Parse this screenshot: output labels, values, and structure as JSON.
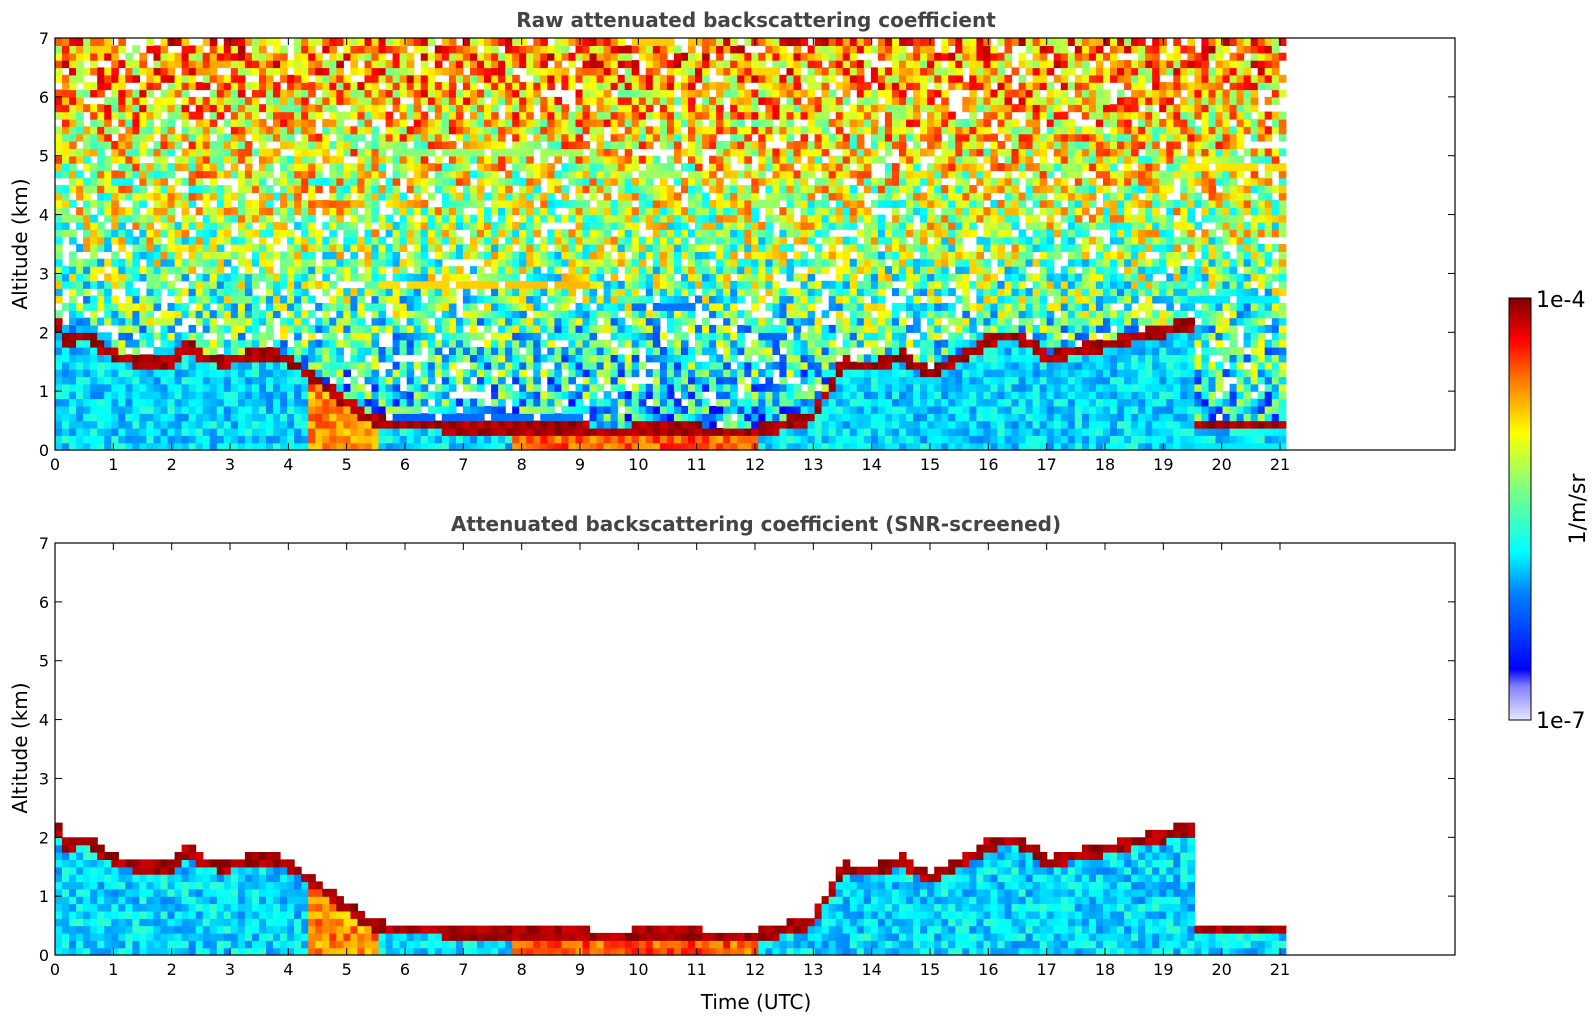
{
  "chart_data": [
    {
      "type": "heatmap",
      "title": "Raw attenuated backscattering coefficient",
      "xlabel": "",
      "ylabel": "Altitude (km)",
      "xlim": [
        0,
        24
      ],
      "ylim": [
        0,
        7
      ],
      "xticks": [
        "0",
        "1",
        "2",
        "3",
        "4",
        "5",
        "6",
        "7",
        "8",
        "9",
        "10",
        "11",
        "12",
        "13",
        "14",
        "15",
        "16",
        "17",
        "18",
        "19",
        "20",
        "21"
      ],
      "yticks": [
        "0",
        "1",
        "2",
        "3",
        "4",
        "5",
        "6",
        "7"
      ],
      "data_end_time": 21.1,
      "screened": false,
      "layer_top_km": [
        [
          0.0,
          2.2
        ],
        [
          0.2,
          1.85
        ],
        [
          0.5,
          1.95
        ],
        [
          1.0,
          1.6
        ],
        [
          1.5,
          1.45
        ],
        [
          2.0,
          1.5
        ],
        [
          2.3,
          1.8
        ],
        [
          2.5,
          1.55
        ],
        [
          3.0,
          1.5
        ],
        [
          3.5,
          1.65
        ],
        [
          4.0,
          1.55
        ],
        [
          4.3,
          1.3
        ],
        [
          5.5,
          0.45
        ],
        [
          6.5,
          0.4
        ],
        [
          7.5,
          0.35
        ],
        [
          8.5,
          0.35
        ],
        [
          9.5,
          0.3
        ],
        [
          10.5,
          0.35
        ],
        [
          11.5,
          0.3
        ],
        [
          12.0,
          0.3
        ],
        [
          13.0,
          0.55
        ],
        [
          13.5,
          1.45
        ],
        [
          14.0,
          1.4
        ],
        [
          14.5,
          1.6
        ],
        [
          15.0,
          1.3
        ],
        [
          15.5,
          1.55
        ],
        [
          16.0,
          1.85
        ],
        [
          16.5,
          1.95
        ],
        [
          17.0,
          1.55
        ],
        [
          18.5,
          1.9
        ],
        [
          19.0,
          2.0
        ],
        [
          19.5,
          2.15
        ]
      ]
    },
    {
      "type": "heatmap",
      "title": "Attenuated backscattering coefficient (SNR-screened)",
      "xlabel": "Time (UTC)",
      "ylabel": "Altitude (km)",
      "xlim": [
        0,
        24
      ],
      "ylim": [
        0,
        7
      ],
      "xticks": [
        "0",
        "1",
        "2",
        "3",
        "4",
        "5",
        "6",
        "7",
        "8",
        "9",
        "10",
        "11",
        "12",
        "13",
        "14",
        "15",
        "16",
        "17",
        "18",
        "19",
        "20",
        "21"
      ],
      "yticks": [
        "0",
        "1",
        "2",
        "3",
        "4",
        "5",
        "6",
        "7"
      ],
      "data_end_time": 21.1,
      "screened": true,
      "layer_top_km": [
        [
          0.0,
          2.2
        ],
        [
          0.2,
          1.85
        ],
        [
          0.5,
          1.95
        ],
        [
          1.0,
          1.6
        ],
        [
          1.5,
          1.45
        ],
        [
          2.0,
          1.5
        ],
        [
          2.3,
          1.8
        ],
        [
          2.5,
          1.55
        ],
        [
          3.0,
          1.5
        ],
        [
          3.5,
          1.65
        ],
        [
          4.0,
          1.55
        ],
        [
          4.3,
          1.3
        ],
        [
          5.5,
          0.45
        ],
        [
          6.5,
          0.4
        ],
        [
          7.5,
          0.35
        ],
        [
          8.5,
          0.35
        ],
        [
          9.5,
          0.3
        ],
        [
          10.5,
          0.35
        ],
        [
          11.5,
          0.3
        ],
        [
          12.0,
          0.3
        ],
        [
          13.0,
          0.55
        ],
        [
          13.5,
          1.45
        ],
        [
          14.0,
          1.4
        ],
        [
          14.5,
          1.6
        ],
        [
          15.0,
          1.3
        ],
        [
          15.5,
          1.55
        ],
        [
          16.0,
          1.85
        ],
        [
          16.5,
          1.95
        ],
        [
          17.0,
          1.55
        ],
        [
          18.5,
          1.9
        ],
        [
          19.0,
          2.0
        ],
        [
          19.5,
          2.15
        ]
      ]
    }
  ],
  "colorbar": {
    "max_label": "1e-4",
    "min_label": "1e-7",
    "unit_label": "1/m/sr",
    "scale": "log",
    "range": [
      1e-07,
      0.0001
    ],
    "colormap": "jet"
  },
  "colors": {
    "title": "#444444",
    "axis": "#000000",
    "background": "#ffffff"
  }
}
